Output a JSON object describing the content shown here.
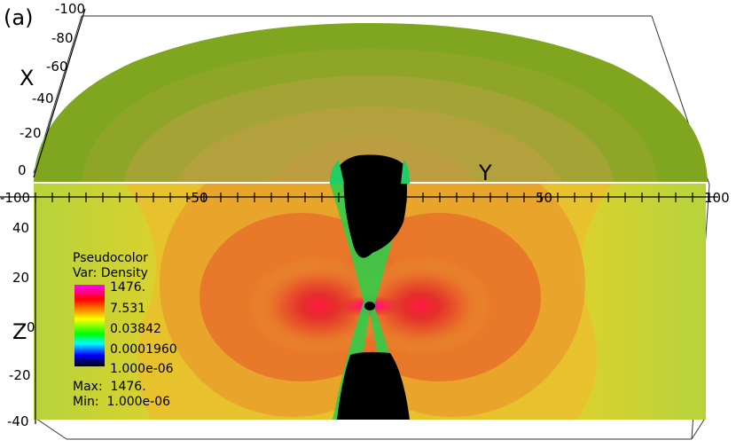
{
  "panel_label": "(a)",
  "axes": {
    "x_title": "X",
    "y_title": "Y",
    "z_title": "Z",
    "x_ticks": [
      "-100",
      "-80",
      "-60",
      "-40",
      "-20",
      "0"
    ],
    "y_ticks": [
      "-100",
      "-50",
      "50",
      "100"
    ],
    "z_ticks": [
      "40",
      "20",
      "0",
      "-20",
      "-40"
    ]
  },
  "legend": {
    "title": "Pseudocolor",
    "variable": "Var: Density",
    "levels": [
      "1476.",
      "7.531",
      "0.03842",
      "0.0001960",
      "1.000e-06"
    ],
    "max": "Max:  1476.",
    "min": "Min:  1.000e-06",
    "colors": [
      "#ff00ff",
      "#ff0000",
      "#ffff00",
      "#00ff00",
      "#00ffff",
      "#0000ff",
      "#000000"
    ]
  },
  "scene_colors": {
    "hemisphere_outer": "#7fa61e",
    "hemisphere_inner": "#b3a33a",
    "slice_edge": "#b8d23a",
    "slice_mid": "#e3cc2e",
    "lobe_outer": "#ea9a2c",
    "lobe_mid": "#e5602a",
    "lobe_core": "#e32a2a",
    "cavity": "#000000"
  }
}
